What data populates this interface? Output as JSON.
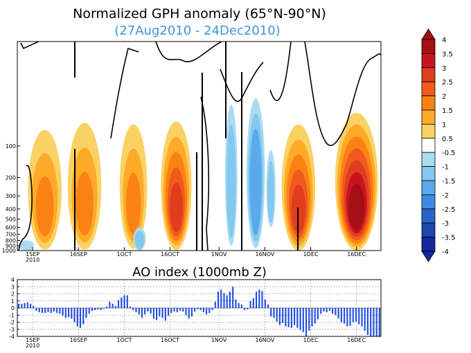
{
  "chart_data": [
    {
      "type": "heatmap",
      "title": "Normalized GPH anomaly (65°N-90°N)",
      "subtitle": "(27Aug2010 - 24Dec2010)",
      "colors": {
        "title": "#000000",
        "subtitle": "#3c96dc"
      },
      "x_ticks": [
        "1SEP",
        "16SEP",
        "1OCT",
        "16OCT",
        "1NOV",
        "16NOV",
        "1DEC",
        "16DEC"
      ],
      "x_year_label": "2010",
      "y_ticks": [
        "100",
        "200",
        "300",
        "400",
        "500",
        "600",
        "700",
        "800",
        "900",
        "1000"
      ],
      "y_tick_values": [
        100,
        200,
        300,
        400,
        500,
        600,
        700,
        800,
        900,
        1000
      ],
      "yscale": "log",
      "x_range_days": [
        0,
        119
      ],
      "colorbar": {
        "labels": [
          "4",
          "3.5",
          "3",
          "2.5",
          "2",
          "1.5",
          "1",
          "0.5",
          "-0.5",
          "-1",
          "-1.5",
          "-2",
          "-2.5",
          "-3",
          "-3.5",
          "-4"
        ],
        "label_values": [
          4,
          3.5,
          3,
          2.5,
          2,
          1.5,
          1,
          0.5,
          -0.5,
          -1,
          -1.5,
          -2,
          -2.5,
          -3,
          -3.5,
          -4
        ],
        "colors": [
          "#a50f15",
          "#c8141e",
          "#e03c1e",
          "#f05a1e",
          "#fa8214",
          "#ffaa28",
          "#fad264",
          "#ffffff",
          "#aadcf0",
          "#82c8f0",
          "#5aaaeb",
          "#3c8ce6",
          "#2864c8",
          "#1e46af",
          "#14289b"
        ]
      },
      "grid": false
    },
    {
      "type": "bar",
      "title": "AO index (1000mb Z)",
      "y_ticks": [
        "4",
        "3",
        "2",
        "1",
        "0",
        "-1",
        "-2",
        "-3",
        "-4"
      ],
      "ylim": [
        -4,
        4
      ],
      "x_ticks": [
        "1SEP",
        "16SEP",
        "1OCT",
        "16OCT",
        "1NOV",
        "16NOV",
        "1DEC",
        "16DEC"
      ],
      "x_year_label": "2010",
      "grid": true,
      "bar_color": "#1e4be6",
      "values": [
        0.6,
        0.6,
        0.7,
        0.8,
        0.6,
        0.3,
        -0.4,
        -0.6,
        -0.7,
        -0.7,
        -0.6,
        -0.7,
        -0.5,
        -0.7,
        -0.8,
        -1.1,
        -1.4,
        -1.3,
        -1.5,
        -2,
        -2.6,
        -2.8,
        -2.3,
        -1.4,
        -0.8,
        -0.4,
        -0.3,
        -0.2,
        -0.3,
        -0.1,
        0.2,
        0.9,
        0.6,
        0.3,
        1.1,
        1.5,
        1.8,
        1.8,
        0.2,
        -0.3,
        -0.6,
        -0.9,
        -1.4,
        -0.9,
        -0.5,
        -0.8,
        -1.5,
        -1.7,
        -1.2,
        -1.4,
        -1.8,
        -1.1,
        -0.7,
        -0.5,
        -0.6,
        -0.4,
        -0.5,
        -1,
        -1.5,
        -1.2,
        -0.5,
        -0.2,
        -0.3,
        -0.6,
        -0.9,
        -0.7,
        -0.3,
        0.9,
        2.3,
        2.6,
        2.1,
        1.8,
        2.3,
        3,
        1.2,
        0.7,
        0.5,
        -0.3,
        -0.2,
        1,
        1.4,
        2.3,
        2.6,
        2.4,
        1.2,
        0.5,
        -1.2,
        -1.4,
        -1.9,
        -2.4,
        -2.1,
        -2.6,
        -2.7,
        -2.8,
        -2.4,
        -2.8,
        -3.1,
        -3.4,
        -4,
        -3.2,
        -2.6,
        -2.2,
        -1.6,
        -0.8,
        -0.5,
        -0.6,
        -0.4,
        -0.8,
        -1,
        -1.5,
        -2,
        -2.2,
        -2.6,
        -2.5,
        -2,
        -1.9,
        -2.3,
        -2.6,
        -3.2,
        -3.8,
        -4,
        -4,
        -4,
        -4
      ]
    }
  ]
}
